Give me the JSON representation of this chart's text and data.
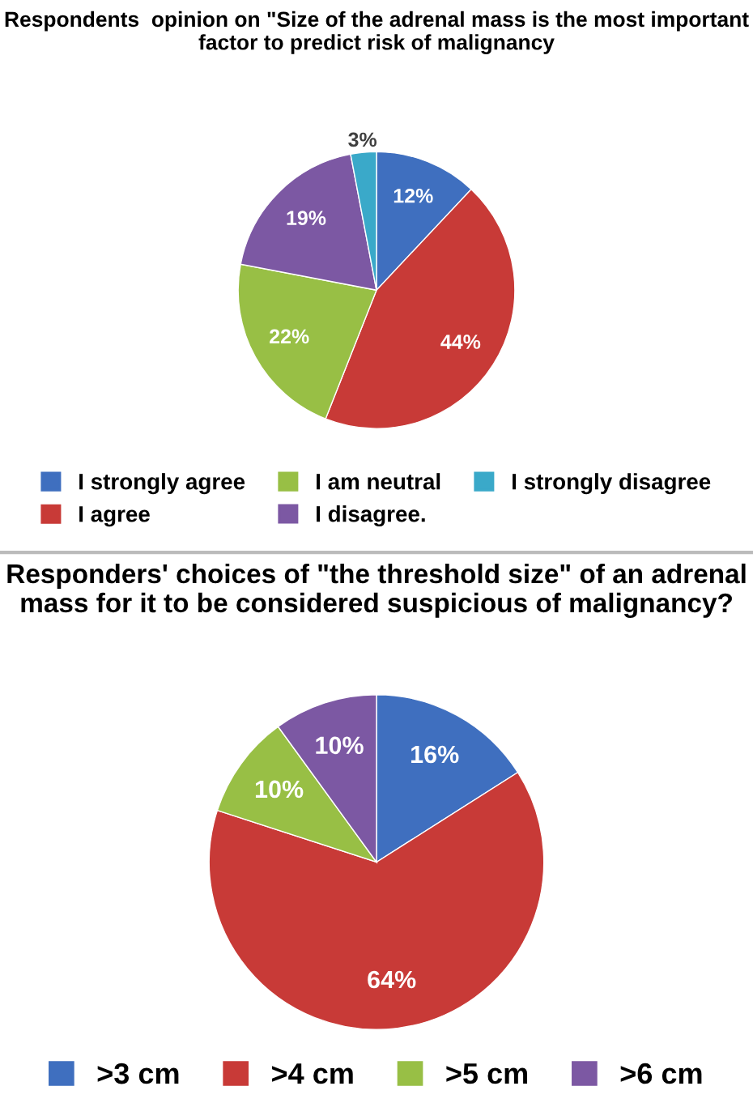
{
  "chart_data": [
    {
      "type": "pie",
      "title": "Respondents  opinion on \"Size of the adrenal mass is the most important factor to predict risk of malignancy",
      "categories": [
        "I strongly agree",
        "I agree",
        "I am neutral",
        "I disagree.",
        "I strongly disagree"
      ],
      "values": [
        12,
        44,
        22,
        19,
        3
      ],
      "value_labels": [
        "12%",
        "44%",
        "22%",
        "19%",
        "3%"
      ],
      "colors": [
        "#3f6fbf",
        "#c83a37",
        "#98bf45",
        "#7c58a3",
        "#3aa9c9"
      ],
      "legend": "bottom"
    },
    {
      "type": "pie",
      "title": "Responders' choices of \"the threshold size\" of an adrenal mass for it to be considered suspicious of malignancy?",
      "categories": [
        ">3 cm",
        ">4 cm",
        ">5 cm",
        ">6 cm"
      ],
      "values": [
        16,
        64,
        10,
        10
      ],
      "value_labels": [
        "16%",
        "64%",
        "10%",
        "10%"
      ],
      "colors": [
        "#3f6fbf",
        "#c83a37",
        "#98bf45",
        "#7c58a3"
      ],
      "legend": "bottom"
    }
  ]
}
